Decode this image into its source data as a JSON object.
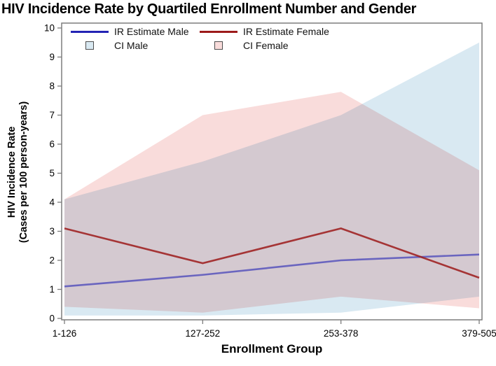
{
  "title": "HIV Incidence Rate by Quartiled Enrollment Number and Gender",
  "axes": {
    "ylabel_line1": "HIV Incidence Rate",
    "ylabel_line2": "(Cases per 100 person-years)",
    "xlabel": "Enrollment Group"
  },
  "legend": {
    "items": [
      {
        "label": "IR Estimate Male",
        "swatch": "line",
        "color": "#2323B4"
      },
      {
        "label": "IR Estimate Female",
        "swatch": "line",
        "color": "#9C1A1A"
      },
      {
        "label": "CI Male",
        "swatch": "square",
        "color": "#D9E9F2"
      },
      {
        "label": "CI Female",
        "swatch": "square",
        "color": "#F9DCDB"
      }
    ]
  },
  "colors": {
    "male_line": "#2323B4",
    "female_line": "#9C1A1A",
    "male_ci_fill": "#D9E9F2",
    "female_ci_fill": "#F9DCDB",
    "frame": "#7d7d7d",
    "tick": "#7d7d7d"
  },
  "chart_data": {
    "type": "line",
    "title": "HIV Incidence Rate by Quartiled Enrollment Number and Gender",
    "xlabel": "Enrollment Group",
    "ylabel": "HIV Incidence Rate (Cases per 100 person-years)",
    "categories": [
      "1-126",
      "127-252",
      "253-378",
      "379-505"
    ],
    "ylim": [
      0,
      10
    ],
    "yticks": [
      0,
      1,
      2,
      3,
      4,
      5,
      6,
      7,
      8,
      9,
      10
    ],
    "grid": false,
    "legend_position": "inside-top-left",
    "series": [
      {
        "name": "IR Estimate Male",
        "kind": "line",
        "color": "#2323B4",
        "opacity": 0.6,
        "values": [
          1.1,
          1.5,
          2.0,
          2.2
        ]
      },
      {
        "name": "IR Estimate Female",
        "kind": "line",
        "color": "#9C1A1A",
        "opacity": 0.85,
        "values": [
          3.1,
          1.9,
          3.1,
          1.4
        ]
      },
      {
        "name": "CI Male",
        "kind": "band",
        "color": "#D9E9F2",
        "lower": [
          0.1,
          0.1,
          0.2,
          0.75
        ],
        "upper": [
          4.1,
          5.4,
          7.0,
          9.5
        ]
      },
      {
        "name": "CI Female",
        "kind": "band",
        "color": "#F9DCDB",
        "lower": [
          0.4,
          0.2,
          0.75,
          0.35
        ],
        "upper": [
          4.1,
          7.0,
          7.8,
          5.1
        ]
      }
    ]
  }
}
